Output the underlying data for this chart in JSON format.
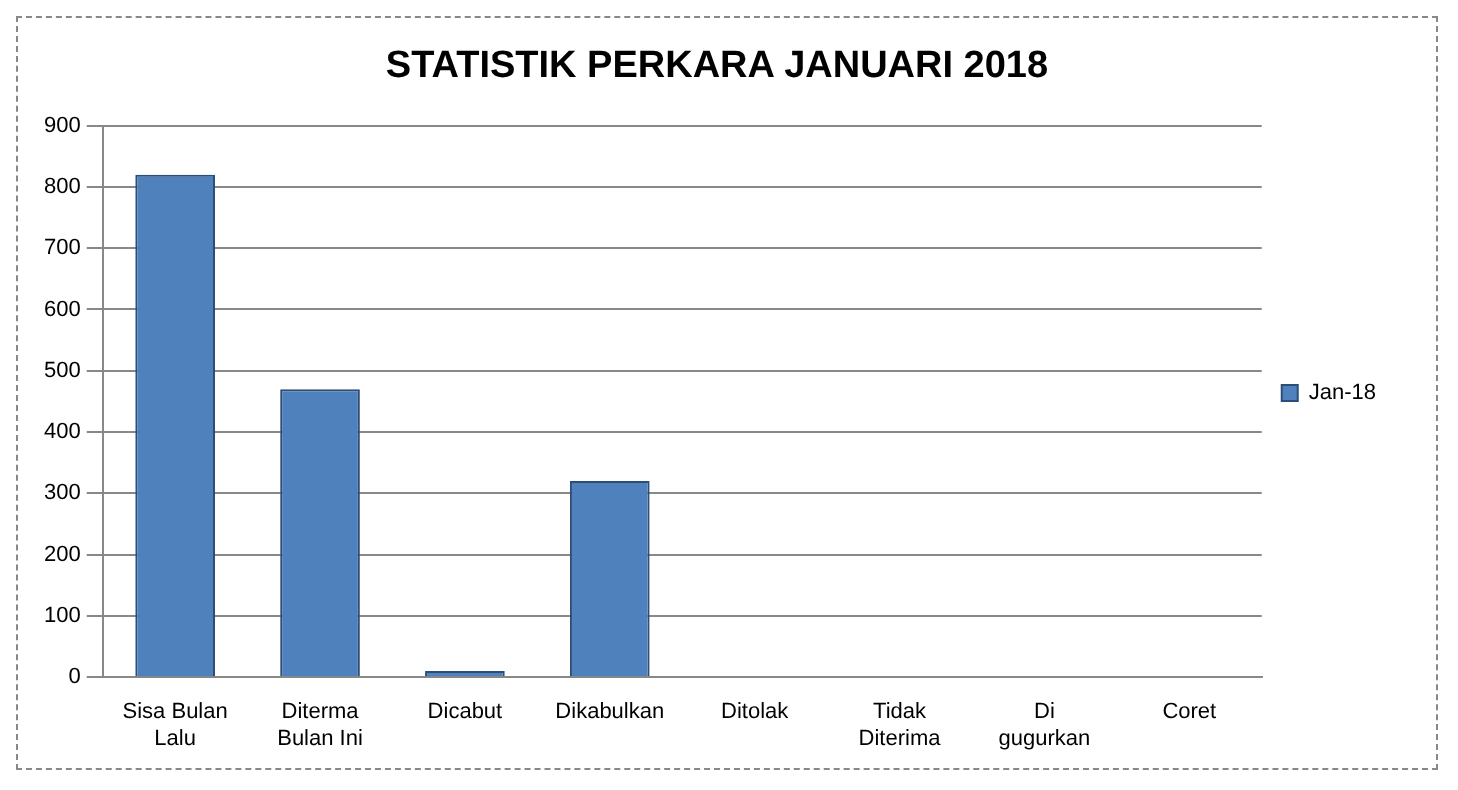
{
  "chart_data": {
    "type": "bar",
    "title": "STATISTIK PERKARA JANUARI 2018",
    "categories": [
      "Sisa Bulan Lalu",
      "Diterma Bulan Ini",
      "Dicabut",
      "Dikabulkan",
      "Ditolak",
      "Tidak Diterima",
      "Di gugurkan",
      "Coret"
    ],
    "series": [
      {
        "name": "Jan-18",
        "color": "#4f81bd",
        "values": [
          820,
          470,
          10,
          320,
          0,
          0,
          0,
          0
        ]
      }
    ],
    "ylim": [
      0,
      900
    ],
    "yticks": [
      0,
      100,
      200,
      300,
      400,
      500,
      600,
      700,
      800,
      900
    ],
    "grid": "y",
    "legend": "right"
  }
}
